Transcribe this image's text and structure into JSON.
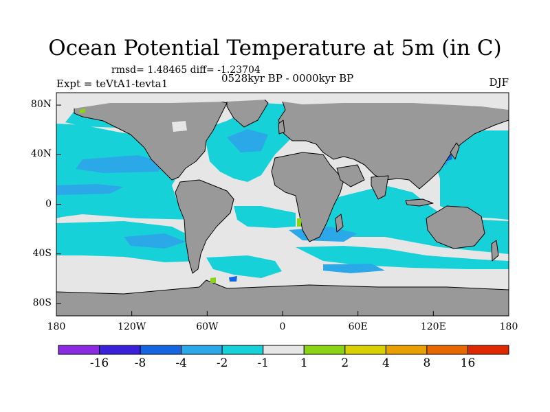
{
  "title": "Ocean Potential Temperature at 5m (in C)",
  "stats": "rmsd= 1.48465 diff= -1.23704",
  "experiment": "Expt = teVtA1-tevta1",
  "period": "0528kyr BP - 0000kyr BP",
  "season": "DJF",
  "map": {
    "lon_range": [
      -180,
      180
    ],
    "lat_range": [
      -90,
      90
    ],
    "lat_ticks": [
      {
        "value": 80,
        "label": "80N"
      },
      {
        "value": 40,
        "label": "40N"
      },
      {
        "value": 0,
        "label": "0"
      },
      {
        "value": -40,
        "label": "40S"
      },
      {
        "value": -80,
        "label": "80S"
      }
    ],
    "lon_ticks": [
      {
        "value": -180,
        "label": "180"
      },
      {
        "value": -120,
        "label": "120W"
      },
      {
        "value": -60,
        "label": "60W"
      },
      {
        "value": 0,
        "label": "0"
      },
      {
        "value": 60,
        "label": "60E"
      },
      {
        "value": 120,
        "label": "120E"
      },
      {
        "value": 180,
        "label": "180"
      }
    ],
    "colors": {
      "land": "#999999",
      "ocean_default": "#e6e6e6",
      "coast": "#000000"
    }
  },
  "colorbar": {
    "levels": [
      "-16",
      "-8",
      "-4",
      "-2",
      "-1",
      "1",
      "2",
      "4",
      "8",
      "16"
    ],
    "colors": [
      "#8a2be2",
      "#3a20d8",
      "#1565e0",
      "#2aa8e8",
      "#16d2d8",
      "#e6e6e6",
      "#8ad414",
      "#d8d000",
      "#e8a000",
      "#e86800",
      "#e02800"
    ]
  }
}
